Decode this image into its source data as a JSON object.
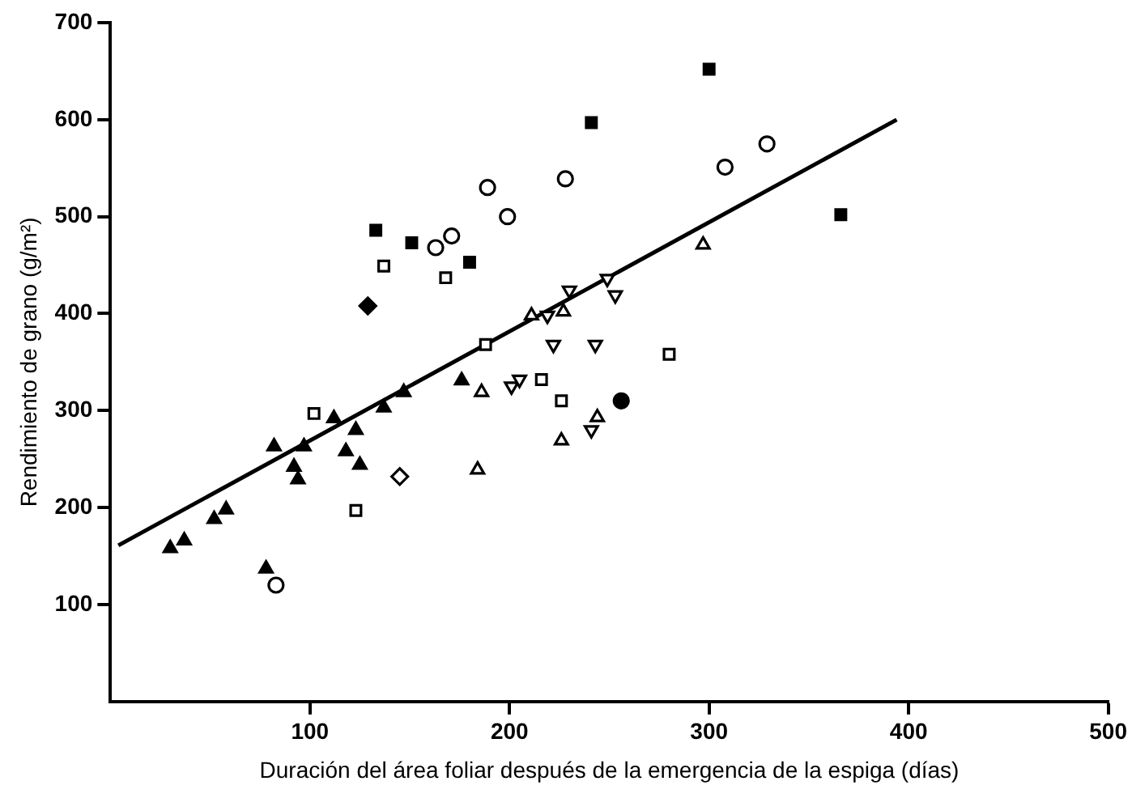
{
  "chart_data": {
    "type": "scatter",
    "xlabel": "Duración del área foliar después de la emergencia de la espiga (días)",
    "ylabel": "Rendimiento de grano (g/m²)",
    "xlim": [
      0,
      500
    ],
    "xticks": [
      100,
      200,
      300,
      400,
      500
    ],
    "ylim": [
      0,
      700
    ],
    "yticks": [
      100,
      200,
      300,
      400,
      500,
      600,
      700
    ],
    "grid": false,
    "legend": false,
    "series": [
      {
        "color": "#000000",
        "marker": "square",
        "x": [
          133,
          151,
          180,
          241,
          300,
          366
        ],
        "values": [
          486,
          473,
          453,
          597,
          652,
          502
        ]
      },
      {
        "color": "#000000",
        "marker": "circle-open",
        "x": [
          163,
          171,
          189,
          199,
          228,
          308,
          329,
          83
        ],
        "values": [
          468,
          480,
          530,
          500,
          539,
          551,
          575,
          120
        ]
      },
      {
        "color": "#000000",
        "marker": "circle",
        "x": [
          256
        ],
        "values": [
          310
        ]
      },
      {
        "color": "#000000",
        "marker": "diamond",
        "x": [
          129
        ],
        "values": [
          408
        ]
      },
      {
        "color": "#000000",
        "marker": "diamond-open",
        "x": [
          145
        ],
        "values": [
          232
        ]
      },
      {
        "color": "#000000",
        "marker": "square-open",
        "x": [
          137,
          168,
          188,
          102,
          123,
          216,
          226,
          280
        ],
        "values": [
          449,
          437,
          368,
          297,
          197,
          332,
          310,
          358
        ]
      },
      {
        "color": "#000000",
        "marker": "triangle",
        "x": [
          30,
          37,
          52,
          58,
          78,
          82,
          92,
          94,
          97,
          112,
          118,
          123,
          125,
          137,
          147,
          176
        ],
        "values": [
          158,
          166,
          188,
          198,
          137,
          263,
          242,
          229,
          263,
          292,
          258,
          280,
          244,
          303,
          319,
          331
        ]
      },
      {
        "color": "#000000",
        "marker": "triangle-open",
        "x": [
          186,
          184,
          226,
          244,
          211,
          227,
          297
        ],
        "values": [
          319,
          239,
          269,
          293,
          398,
          402,
          471
        ]
      },
      {
        "color": "#000000",
        "marker": "triangle-down-open",
        "x": [
          219,
          230,
          222,
          243,
          249,
          253,
          201,
          205,
          241
        ],
        "values": [
          398,
          424,
          368,
          368,
          436,
          419,
          325,
          332,
          280
        ]
      },
      {
        "type": "line",
        "color": "#000000",
        "marker": "none",
        "x": [
          4,
          394
        ],
        "values": [
          161,
          600
        ]
      }
    ]
  }
}
